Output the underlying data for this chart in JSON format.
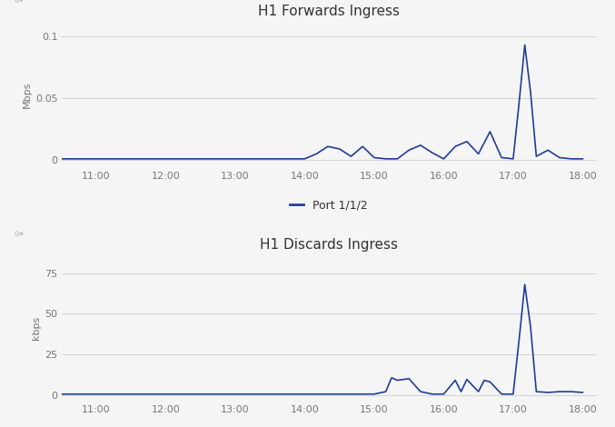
{
  "chart1": {
    "title": "H1 Forwards Ingress",
    "ylabel": "Mbps",
    "yticks": [
      0,
      0.05,
      0.1
    ],
    "ylim": [
      -0.006,
      0.112
    ],
    "x_hours": [
      10.5,
      11.0,
      11.167,
      11.333,
      11.5,
      11.667,
      11.833,
      12.0,
      12.167,
      12.333,
      12.5,
      12.667,
      12.833,
      13.0,
      13.167,
      13.333,
      13.5,
      13.667,
      13.833,
      14.0,
      14.167,
      14.333,
      14.5,
      14.667,
      14.833,
      15.0,
      15.167,
      15.333,
      15.5,
      15.667,
      15.833,
      16.0,
      16.167,
      16.333,
      16.5,
      16.667,
      16.833,
      17.0,
      17.083,
      17.167,
      17.25,
      17.333,
      17.5,
      17.667,
      17.833,
      18.0
    ],
    "y_vals": [
      0.001,
      0.001,
      0.001,
      0.001,
      0.001,
      0.001,
      0.001,
      0.001,
      0.001,
      0.001,
      0.001,
      0.001,
      0.001,
      0.001,
      0.001,
      0.001,
      0.001,
      0.001,
      0.001,
      0.001,
      0.005,
      0.011,
      0.009,
      0.003,
      0.011,
      0.002,
      0.001,
      0.001,
      0.008,
      0.012,
      0.006,
      0.001,
      0.011,
      0.015,
      0.005,
      0.023,
      0.002,
      0.001,
      0.045,
      0.093,
      0.055,
      0.003,
      0.008,
      0.002,
      0.001,
      0.001
    ]
  },
  "chart2": {
    "title": "H1 Discards Ingress",
    "ylabel": "kbps",
    "yticks": [
      0,
      25,
      50,
      75
    ],
    "ylim": [
      -4,
      86
    ],
    "x_hours": [
      10.5,
      11.0,
      11.167,
      11.333,
      11.5,
      11.667,
      11.833,
      12.0,
      12.167,
      12.333,
      12.5,
      12.667,
      12.833,
      13.0,
      13.167,
      13.333,
      13.5,
      13.667,
      13.833,
      14.0,
      14.167,
      14.333,
      14.5,
      14.667,
      14.833,
      15.0,
      15.167,
      15.25,
      15.333,
      15.5,
      15.583,
      15.667,
      15.833,
      16.0,
      16.167,
      16.25,
      16.333,
      16.5,
      16.583,
      16.667,
      16.833,
      17.0,
      17.083,
      17.167,
      17.25,
      17.333,
      17.5,
      17.667,
      17.833,
      18.0
    ],
    "y_vals": [
      0.5,
      0.5,
      0.5,
      0.5,
      0.5,
      0.5,
      0.5,
      0.5,
      0.5,
      0.5,
      0.5,
      0.5,
      0.5,
      0.5,
      0.5,
      0.5,
      0.5,
      0.5,
      0.5,
      0.5,
      0.5,
      0.5,
      0.5,
      0.5,
      0.5,
      0.5,
      2.0,
      10.5,
      9.0,
      10.0,
      6.0,
      2.0,
      0.5,
      0.5,
      9.0,
      2.0,
      9.5,
      2.0,
      9.0,
      8.0,
      0.5,
      0.5,
      33.0,
      68.0,
      42.0,
      2.0,
      1.5,
      2.0,
      2.0,
      1.5
    ]
  },
  "line_color": "#1f3d99",
  "line_width": 1.2,
  "legend_label": "Port 1/1/2",
  "xtick_hours": [
    11,
    12,
    13,
    14,
    15,
    16,
    17,
    18
  ],
  "xtick_labels": [
    "11:00",
    "12:00",
    "13:00",
    "14:00",
    "15:00",
    "16:00",
    "17:00",
    "18:00"
  ],
  "xlim": [
    10.5,
    18.2
  ],
  "bg_color": "#f5f5f5",
  "plot_bg_color": "#f5f5f5",
  "grid_color": "#d5d5d5",
  "title_fontsize": 11,
  "label_fontsize": 8,
  "tick_fontsize": 8,
  "legend_fontsize": 9
}
